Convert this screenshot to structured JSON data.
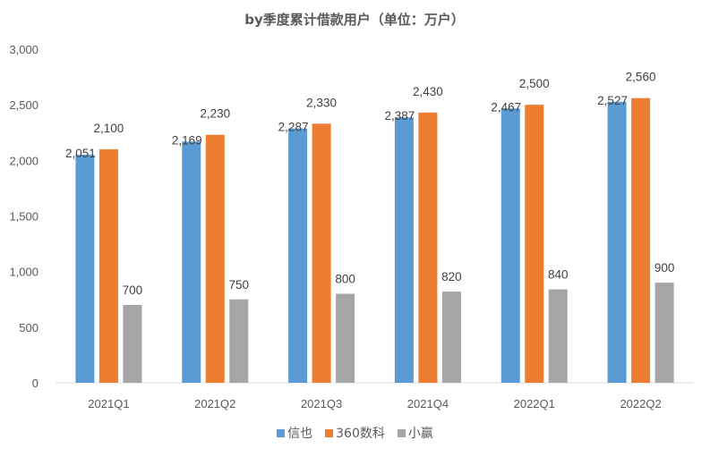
{
  "chart_data": {
    "type": "bar",
    "title": "by季度累计借款用户（单位：万户）",
    "xlabel": "",
    "ylabel": "",
    "ylim": [
      0,
      3000
    ],
    "yticks": [
      0,
      500,
      1000,
      1500,
      2000,
      2500,
      3000
    ],
    "ytick_labels": [
      "0",
      "500",
      "1,000",
      "1,500",
      "2,000",
      "2,500",
      "3,000"
    ],
    "grid": false,
    "legend_position": "bottom",
    "categories": [
      "2021Q1",
      "2021Q2",
      "2021Q3",
      "2021Q4",
      "2022Q1",
      "2022Q2"
    ],
    "series": [
      {
        "name": "信也",
        "color": "#5B9BD5",
        "values": [
          2051,
          2169,
          2287,
          2387,
          2467,
          2527
        ],
        "labels": [
          "2,051",
          "2,169",
          "2,287",
          "2,387",
          "2,467",
          "2,527"
        ]
      },
      {
        "name": "360数科",
        "color": "#ED7D31",
        "values": [
          2100,
          2230,
          2330,
          2430,
          2500,
          2560
        ],
        "labels": [
          "2,100",
          "2,230",
          "2,330",
          "2,430",
          "2,500",
          "2,560"
        ]
      },
      {
        "name": "小赢",
        "color": "#A5A5A5",
        "values": [
          700,
          750,
          800,
          820,
          840,
          900
        ],
        "labels": [
          "700",
          "750",
          "800",
          "820",
          "840",
          "900"
        ]
      }
    ]
  }
}
